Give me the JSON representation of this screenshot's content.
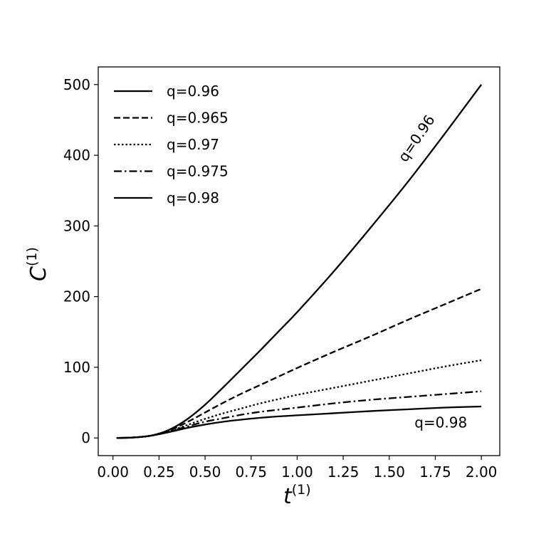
{
  "chart_data": {
    "type": "line",
    "xlabel": "t",
    "xlabel_superscript": "(1)",
    "ylabel": "C",
    "ylabel_superscript": "(1)",
    "xlim": [
      -0.08,
      2.1
    ],
    "ylim": [
      -25,
      525
    ],
    "xticks": [
      0.0,
      0.25,
      0.5,
      0.75,
      1.0,
      1.25,
      1.5,
      1.75,
      2.0
    ],
    "xtick_labels": [
      "0.00",
      "0.25",
      "0.50",
      "0.75",
      "1.00",
      "1.25",
      "1.50",
      "1.75",
      "2.00"
    ],
    "yticks": [
      0,
      100,
      200,
      300,
      400,
      500
    ],
    "ytick_labels": [
      "0",
      "100",
      "200",
      "300",
      "400",
      "500"
    ],
    "grid": false,
    "legend_position": "top-left",
    "x": [
      0.02,
      0.1,
      0.2,
      0.3,
      0.4,
      0.5,
      0.6,
      0.7,
      0.8,
      0.9,
      1.0,
      1.2,
      1.4,
      1.6,
      1.8,
      2.0
    ],
    "series": [
      {
        "name": "q=0.96",
        "style": "solid",
        "values": [
          0,
          0.5,
          3,
          11,
          26,
          47,
          72,
          98,
          124,
          151,
          178,
          236,
          298,
          362,
          430,
          500
        ]
      },
      {
        "name": "q=0.965",
        "style": "dashed",
        "values": [
          0,
          0.5,
          3,
          10,
          22,
          36,
          50,
          63,
          75,
          87,
          99,
          122,
          144,
          167,
          189,
          211
        ]
      },
      {
        "name": "q=0.97",
        "style": "dotted",
        "values": [
          0,
          0.5,
          3,
          9,
          18,
          27,
          35,
          42,
          49,
          55,
          61,
          71,
          81,
          91,
          101,
          110
        ]
      },
      {
        "name": "q=0.975",
        "style": "dashdot",
        "values": [
          0,
          0.5,
          3,
          9,
          16,
          23,
          28,
          33,
          37,
          40,
          43,
          49,
          54,
          58,
          62,
          66
        ]
      },
      {
        "name": "q=0.98",
        "style": "solid",
        "values": [
          0,
          0.5,
          3,
          8,
          14,
          19,
          23,
          26,
          28.5,
          30.5,
          32,
          35,
          38,
          40.5,
          43,
          44.5
        ]
      }
    ],
    "annotations": [
      {
        "text": "q=0.96",
        "x": 1.67,
        "y": 420,
        "rotation": -56
      },
      {
        "text": "q=0.98",
        "x": 1.78,
        "y": 15,
        "rotation": 0
      }
    ]
  },
  "colors": {
    "line": "#000000",
    "axes": "#000000",
    "background": "#ffffff"
  }
}
